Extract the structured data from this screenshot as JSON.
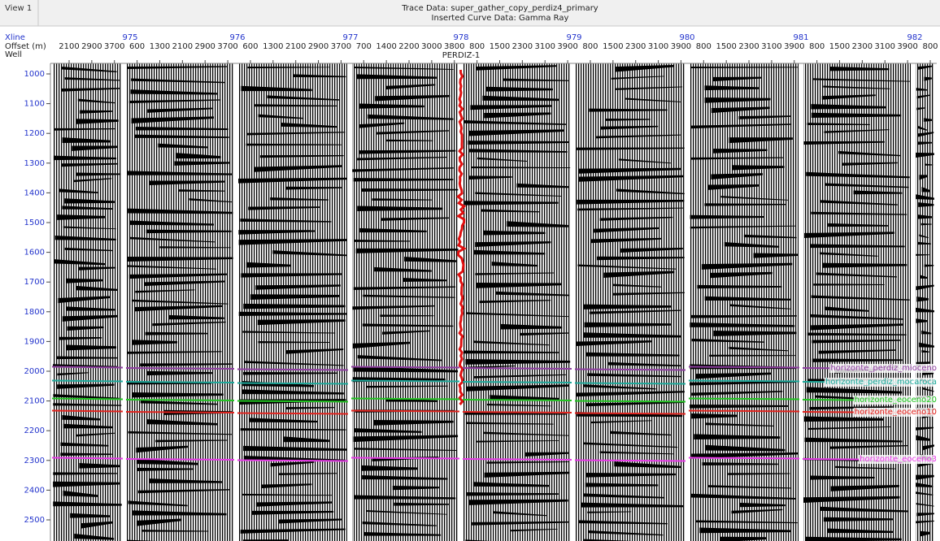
{
  "window": {
    "title": "View 1"
  },
  "header": {
    "trace_data": "Trace Data: super_gather_copy_perdiz4_primary",
    "curve_data": "Inserted Curve Data: Gamma Ray"
  },
  "axis_labels": {
    "xline": "Xline",
    "offset": "Offset (m)",
    "well": "Well"
  },
  "xlines": [
    "975",
    "976",
    "977",
    "978",
    "979",
    "980",
    "981",
    "982"
  ],
  "offsets": [
    "2100",
    "2900",
    "3700",
    "600",
    "1300",
    "2100",
    "2900",
    "3700",
    "600",
    "1300",
    "2100",
    "2900",
    "3700",
    "700",
    "1400",
    "2200",
    "3000",
    "3800",
    "800",
    "1500",
    "2300",
    "3100",
    "3900",
    "800",
    "1500",
    "2300",
    "3100",
    "3900",
    "800",
    "1500",
    "2300",
    "3100",
    "3900",
    "800",
    "1500",
    "2300",
    "3100",
    "3900",
    "800"
  ],
  "well": "PERDIZ-1",
  "times": [
    "1000",
    "1100",
    "1200",
    "1300",
    "1400",
    "1500",
    "1600",
    "1700",
    "1800",
    "1900",
    "2000",
    "2100",
    "2200",
    "2300",
    "2400",
    "2500"
  ],
  "horizons": [
    {
      "name": "horizonte_perdiz_mioceno",
      "color": "#8e3fa0"
    },
    {
      "name": "horizonte_perdiz_mocaroca",
      "color": "#1fa89a"
    },
    {
      "name": "horizonte_eoceno20",
      "color": "#22c322"
    },
    {
      "name": "horizonte_eoceno10",
      "color": "#e0241f"
    },
    {
      "name": "horizonte_eoceno3",
      "color": "#e63be6"
    }
  ]
}
